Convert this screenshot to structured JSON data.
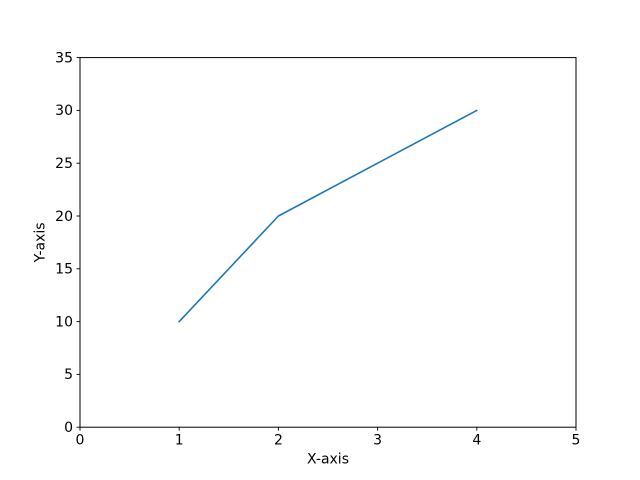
{
  "figure": {
    "background": "#ffffff"
  },
  "chart_data": {
    "type": "line",
    "x": [
      1,
      2,
      3,
      4
    ],
    "y": [
      10,
      20,
      25,
      30
    ],
    "title": "",
    "xlabel": "X-axis",
    "ylabel": "Y-axis",
    "xlim": [
      0,
      5
    ],
    "ylim": [
      0,
      35
    ],
    "xticks": [
      0,
      1,
      2,
      3,
      4,
      5
    ],
    "yticks": [
      0,
      5,
      10,
      15,
      20,
      25,
      30,
      35
    ],
    "grid": false,
    "legend": null,
    "line_color": "#1f77b4",
    "line_width": 1.6,
    "axes_color": "#000000",
    "tick_label_color": "#000000"
  }
}
